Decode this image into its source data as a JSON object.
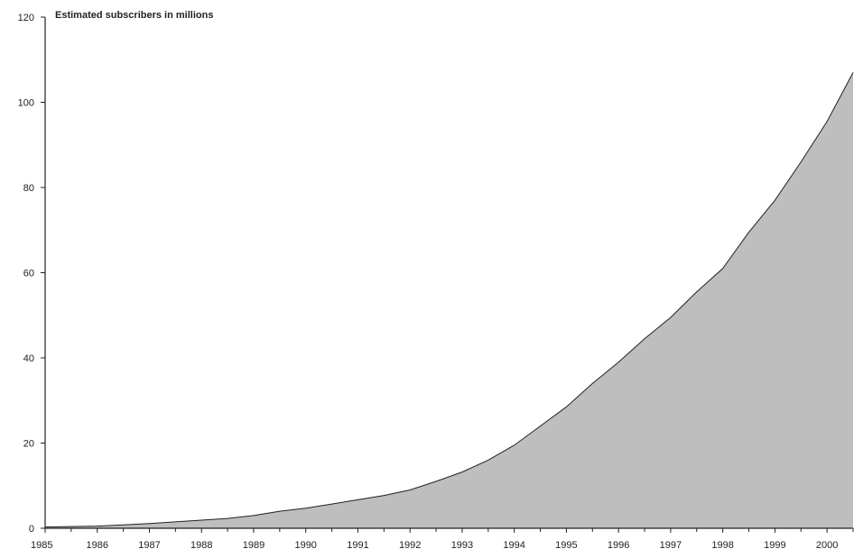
{
  "chart_data": {
    "type": "area",
    "title": "Estimated subscribers in millions",
    "xlabel": "",
    "ylabel": "",
    "ylim": [
      0,
      120
    ],
    "xlim": [
      1985,
      2000.5
    ],
    "yticks": [
      0,
      20,
      40,
      60,
      80,
      100,
      120
    ],
    "xticks": [
      "1985",
      "1986",
      "1987",
      "1988",
      "1989",
      "1990",
      "1991",
      "1992",
      "1993",
      "1994",
      "1995",
      "1996",
      "1997",
      "1998",
      "1999",
      "2000"
    ],
    "grid": false,
    "series": [
      {
        "x": [
          1985,
          1985.5,
          1986,
          1986.5,
          1987,
          1987.5,
          1988,
          1988.5,
          1989,
          1989.5,
          1990,
          1990.5,
          1991,
          1991.5,
          1992,
          1992.5,
          1993,
          1993.5,
          1994,
          1994.5,
          1995,
          1995.5,
          1996,
          1996.5,
          1997,
          1997.5,
          1998,
          1998.5,
          1999,
          1999.5,
          2000,
          2000.5
        ],
        "y": [
          0.3,
          0.4,
          0.5,
          0.8,
          1.1,
          1.5,
          1.9,
          2.3,
          3.0,
          4.0,
          4.7,
          5.7,
          6.7,
          7.7,
          9.0,
          11.0,
          13.2,
          16.0,
          19.5,
          24.0,
          28.5,
          34.0,
          39.0,
          44.5,
          49.5,
          55.5,
          61.0,
          69.5,
          77.0,
          86.0,
          95.5,
          107.0
        ]
      }
    ],
    "colors": {
      "fill": "#bebebe",
      "line": "#222222",
      "axis": "#222222",
      "background": "#ffffff"
    }
  }
}
